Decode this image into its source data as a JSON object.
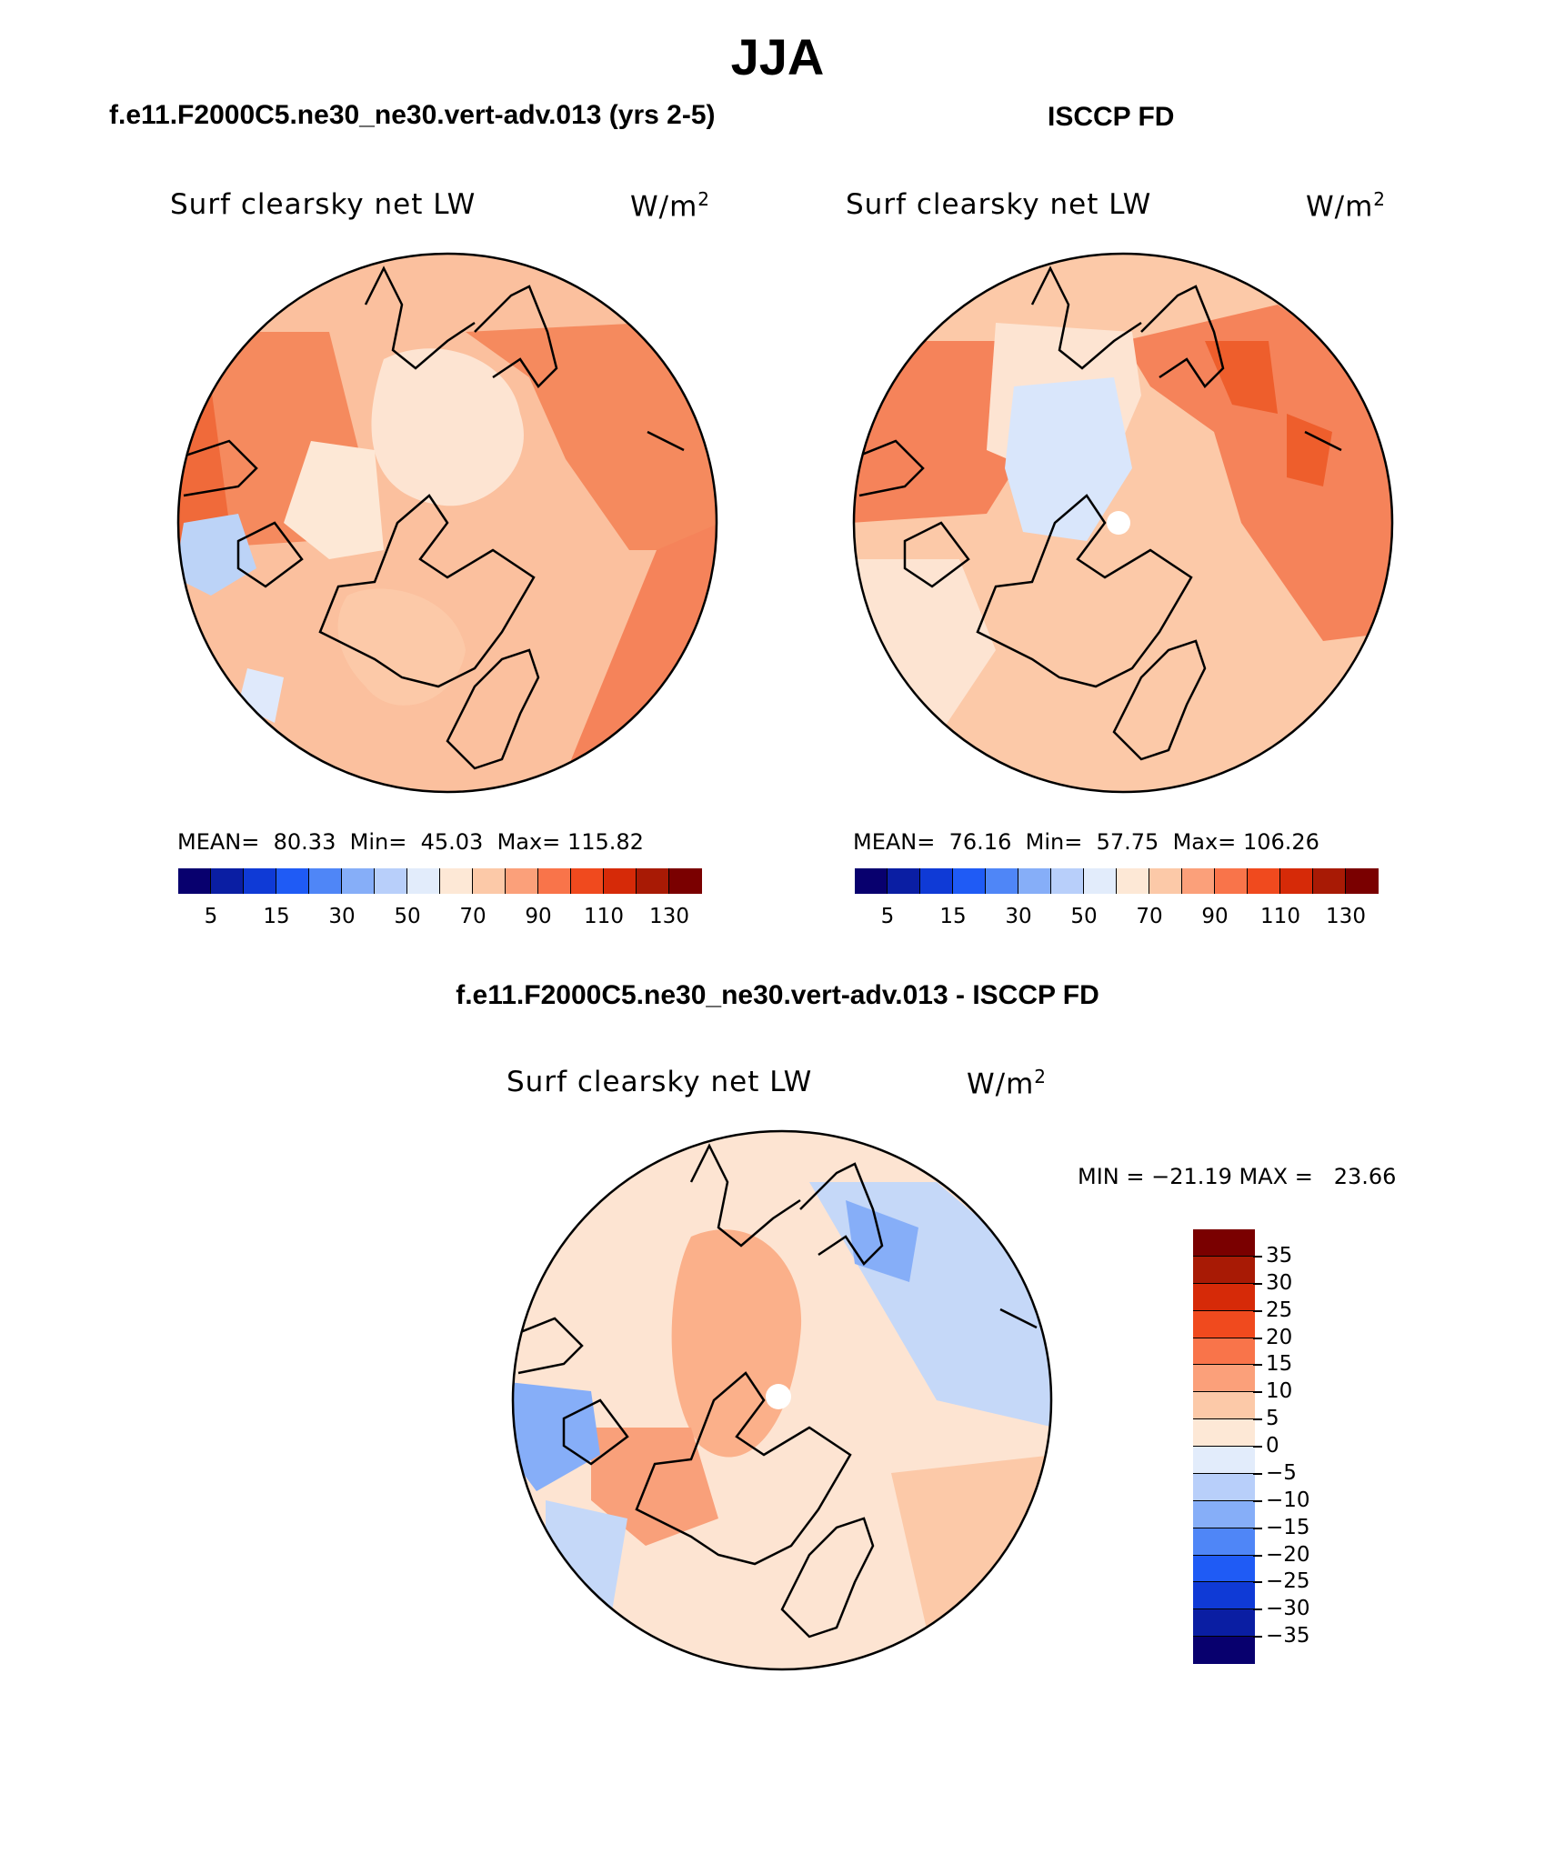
{
  "season_title": "JJA",
  "top_left": {
    "case_title": "f.e11.F2000C5.ne30_ne30.vert-adv.013 (yrs 2-5)",
    "variable_label": "Surf clearsky net LW",
    "units_base": "W/m",
    "units_exp": "2",
    "stats": {
      "mean_label": "MEAN=",
      "mean": "80.33",
      "min_label": "Min=",
      "min": "45.03",
      "max_label": "Max=",
      "max": "115.82"
    }
  },
  "top_right": {
    "case_title": "ISCCP FD",
    "variable_label": "Surf clearsky net LW",
    "units_base": "W/m",
    "units_exp": "2",
    "stats": {
      "mean_label": "MEAN=",
      "mean": "76.16",
      "min_label": "Min=",
      "min": "57.75",
      "max_label": "Max=",
      "max": "106.26"
    }
  },
  "bottom": {
    "case_title": "f.e11.F2000C5.ne30_ne30.vert-adv.013 - ISCCP FD",
    "variable_label": "Surf clearsky net LW",
    "units_base": "W/m",
    "units_exp": "2",
    "minmax_text": "MIN = −21.19 MAX =   23.66"
  },
  "abs_colorbar": {
    "colors": [
      "#08006e",
      "#0a1ea3",
      "#0f3ad6",
      "#1f5bf5",
      "#4f86f7",
      "#86aef8",
      "#b8cffa",
      "#e2ecfb",
      "#fde8d6",
      "#fcc9a8",
      "#fba07a",
      "#f9744a",
      "#f04a1e",
      "#d62a08",
      "#a81a05",
      "#7a0000"
    ],
    "ticks": [
      "5",
      "15",
      "30",
      "50",
      "70",
      "90",
      "110",
      "130"
    ]
  },
  "diff_colorbar": {
    "colors_top_to_bottom": [
      "#7a0000",
      "#a81a05",
      "#d62a08",
      "#f04a1e",
      "#f9744a",
      "#fba07a",
      "#fcc9a8",
      "#fde8d6",
      "#e2ecfb",
      "#b8cffa",
      "#86aef8",
      "#4f86f7",
      "#1f5bf5",
      "#0f3ad6",
      "#0a1ea3",
      "#08006e"
    ],
    "ticks": [
      "35",
      "30",
      "25",
      "20",
      "15",
      "10",
      "5",
      "0",
      "−5",
      "−10",
      "−15",
      "−20",
      "−25",
      "−30",
      "−35"
    ]
  }
}
